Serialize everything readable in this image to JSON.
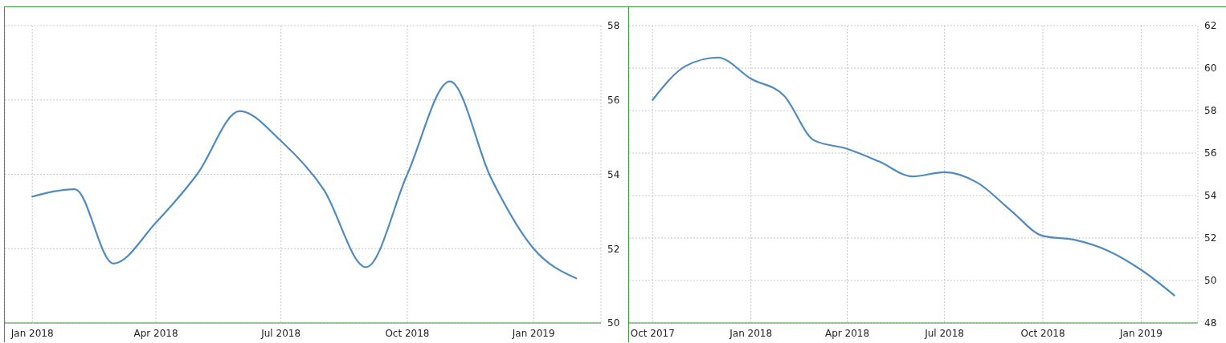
{
  "chart_data": [
    {
      "type": "line",
      "x": [
        "2018-01",
        "2018-02",
        "2018-03",
        "2018-04",
        "2018-05",
        "2018-06",
        "2018-07",
        "2018-08",
        "2018-09",
        "2018-10",
        "2018-11",
        "2018-12",
        "2019-01",
        "2019-02"
      ],
      "series": [
        {
          "color": "#4f8bc1",
          "values": [
            53.4,
            53.6,
            51.6,
            52.7,
            54.0,
            55.7,
            54.9,
            53.6,
            51.5,
            54.0,
            56.5,
            53.9,
            52.0,
            51.2
          ]
        }
      ],
      "xlim": [
        "2017-12-12",
        "2019-02-19"
      ],
      "xticks": [
        {
          "value": "2018-01",
          "label": "Jan 2018"
        },
        {
          "value": "2018-04",
          "label": "Apr 2018"
        },
        {
          "value": "2018-07",
          "label": "Jul 2018"
        },
        {
          "value": "2018-10",
          "label": "Oct 2018"
        },
        {
          "value": "2019-01",
          "label": "Jan 2019"
        }
      ],
      "ylim": [
        50,
        58
      ],
      "yticks": [
        50,
        52,
        54,
        56,
        58
      ],
      "grid": true,
      "legend": false,
      "marker": "none",
      "line_style": "solid"
    },
    {
      "type": "line",
      "x": [
        "2017-10",
        "2017-11",
        "2017-12",
        "2018-01",
        "2018-02",
        "2018-03",
        "2018-04",
        "2018-05",
        "2018-06",
        "2018-07",
        "2018-08",
        "2018-09",
        "2018-10",
        "2018-11",
        "2018-12",
        "2019-01",
        "2019-02"
      ],
      "series": [
        {
          "color": "#4f8bc1",
          "values": [
            58.5,
            60.1,
            60.5,
            59.5,
            58.7,
            56.6,
            56.2,
            55.6,
            54.9,
            55.1,
            54.6,
            53.3,
            52.1,
            51.9,
            51.4,
            50.5,
            49.3
          ]
        }
      ],
      "xlim": [
        "2017-09-09",
        "2019-02-23"
      ],
      "xticks": [
        {
          "value": "2017-10",
          "label": "Oct 2017"
        },
        {
          "value": "2018-01",
          "label": "Jan 2018"
        },
        {
          "value": "2018-04",
          "label": "Apr 2018"
        },
        {
          "value": "2018-07",
          "label": "Jul 2018"
        },
        {
          "value": "2018-10",
          "label": "Oct 2018"
        },
        {
          "value": "2019-01",
          "label": "Jan 2019"
        }
      ],
      "ylim": [
        48,
        62
      ],
      "yticks": [
        48,
        50,
        52,
        54,
        56,
        58,
        60,
        62
      ],
      "grid": true,
      "legend": false,
      "marker": "none",
      "line_style": "solid"
    }
  ]
}
